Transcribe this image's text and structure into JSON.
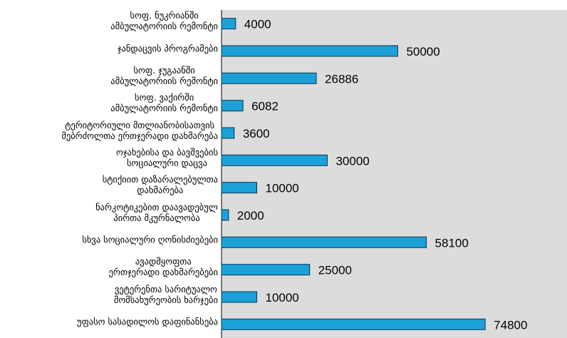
{
  "chart_data": {
    "type": "bar",
    "orientation": "horizontal",
    "categories": [
      "სოფ. ნუკრიანში\nამბულატორიის რემონტი",
      "ჯანდაცვის პროგრამები",
      "სოფ. ჯუგაანში\nამბულატორიის რემონტი",
      "სოფ. ვაქირში\nამბულატორიის რემონტი",
      "ტერიტორიული მთლიანობისათვის\nმებრძოლთა ერთჯერადი დახმარება",
      "ოჯახებისა და ბავშვების\nსოციალური დაცვა",
      "სტიქიით დაზარალებულთა\nდახმარება",
      "ნარკოტიკებით დაავადებულ\nპირთა მკურნალობა",
      "სხვა სოციალური ღონისძიებები",
      "ავადმყოფთა\nერთჯერადი დახმარებები",
      "ვეტერენთა სარიტუალო\nმომსახურეობის ხარჯები",
      "უფასო სასადილოს დაფინანსება"
    ],
    "values": [
      4000,
      50000,
      26886,
      6082,
      3600,
      30000,
      10000,
      2000,
      58100,
      25000,
      10000,
      74800
    ],
    "color": "#1ba1d8",
    "xlim": [
      0,
      98000
    ]
  }
}
